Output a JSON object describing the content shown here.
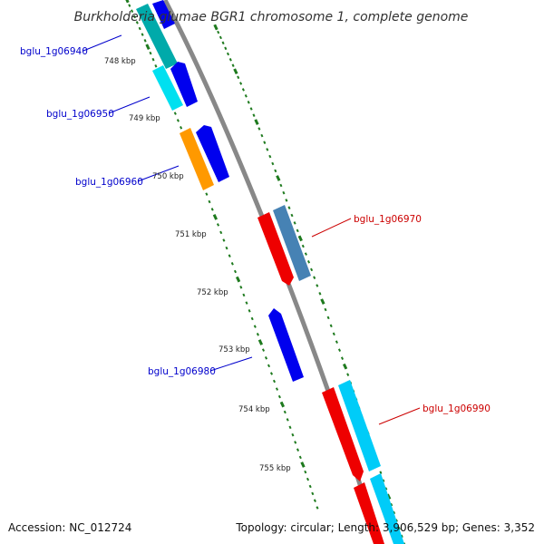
{
  "title": "Burkholderia glumae BGR1 chromosome 1, complete genome",
  "footer": {
    "accession": "Accession: NC_012724",
    "topology": "Topology: circular; Length: 3,906,529 bp; Genes: 3,352"
  },
  "scale_ticks": [
    "748 kbp",
    "749 kbp",
    "750 kbp",
    "751 kbp",
    "752 kbp",
    "753 kbp",
    "754 kbp",
    "755 kbp"
  ],
  "gene_labels": [
    {
      "name": "bglu_1g06940",
      "color": "#0000cc"
    },
    {
      "name": "bglu_1g06950",
      "color": "#0000cc"
    },
    {
      "name": "bglu_1g06960",
      "color": "#0000cc"
    },
    {
      "name": "bglu_1g06970",
      "color": "#cc0000"
    },
    {
      "name": "bglu_1g06980",
      "color": "#0000cc"
    },
    {
      "name": "bglu_1g06990",
      "color": "#cc0000"
    }
  ],
  "colors": {
    "backbone": "#888888",
    "tick_dots": "#1e7a1e",
    "forward_cds": "#0000ee",
    "reverse_cds": "#ee0000",
    "cyan_feature": "#00ccee",
    "teal_feature": "#00aaaa",
    "orange_feature": "#ff9900",
    "steel_feature": "#4682b4"
  }
}
